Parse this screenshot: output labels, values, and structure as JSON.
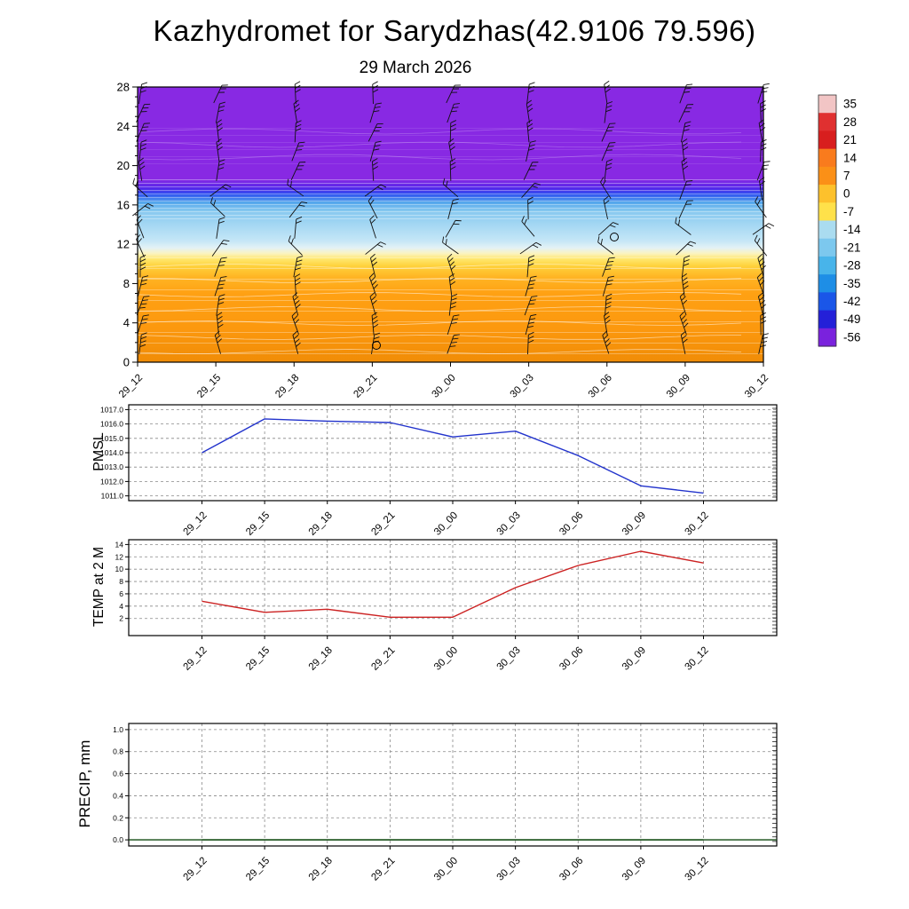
{
  "title": "Kazhydromet for Sarydzhas(42.9106 79.596)",
  "subtitle": "29 March 2026",
  "times": [
    "29_12",
    "29_15",
    "29_18",
    "29_21",
    "30_00",
    "30_03",
    "30_06",
    "30_09",
    "30_12"
  ],
  "chart_data": [
    {
      "type": "heatmap",
      "name": "temperature-wind-vertical-profile",
      "description": "filled temperature contours (deg C) with wind barbs at each forecast time, two calm-wind circles",
      "ylim": [
        0,
        28
      ],
      "yticks": [
        0,
        4,
        8,
        12,
        16,
        20,
        24,
        28
      ],
      "ytick_labels": [
        "0",
        "4",
        "8",
        "12",
        "16",
        "20",
        "24",
        "28"
      ],
      "colorbar": {
        "labels": [
          "35",
          "28",
          "21",
          "14",
          "7",
          "0",
          "-7",
          "-14",
          "-21",
          "-28",
          "-35",
          "-42",
          "-49",
          "-56"
        ],
        "colors": [
          "#f2c5c5",
          "#e03030",
          "#d81e1e",
          "#f97b1d",
          "#fb9017",
          "#fdc12c",
          "#ffe14a",
          "#aadcf0",
          "#7cc8ee",
          "#48b4ea",
          "#1e8ee6",
          "#1a56e8",
          "#2420d8",
          "#7a22dd"
        ]
      }
    },
    {
      "type": "line",
      "name": "PMSL",
      "color": "#2233cc",
      "ylim": [
        1011,
        1017
      ],
      "yticks": [
        1017,
        1016,
        1015,
        1014,
        1013,
        1012,
        1011
      ],
      "ytick_labels": [
        "1017.0",
        "1016.0",
        "1015.0",
        "1014.0",
        "1013.0",
        "1012.0",
        "1011.0"
      ],
      "values": [
        1014.0,
        1016.35,
        1016.2,
        1016.1,
        1015.1,
        1015.5,
        1013.8,
        1011.7,
        1011.2
      ]
    },
    {
      "type": "line",
      "name": "TEMP at 2 M",
      "color": "#cc2222",
      "ylim": [
        0,
        14
      ],
      "yticks": [
        14,
        12,
        10,
        8,
        6,
        4,
        2
      ],
      "ytick_labels": [
        "14",
        "12",
        "10",
        "8",
        "6",
        "4",
        "2"
      ],
      "values": [
        4.8,
        3.0,
        3.5,
        2.2,
        2.2,
        7.0,
        10.6,
        12.9,
        11.0
      ]
    },
    {
      "type": "line",
      "name": "PRECIP, mm",
      "color": "#104a10",
      "ylim": [
        0,
        1
      ],
      "yticks": [
        1.0,
        0.8,
        0.6,
        0.4,
        0.2,
        0.0
      ],
      "ytick_labels": [
        "1.0",
        "0.8",
        "0.6",
        "0.4",
        "0.2",
        "0.0"
      ],
      "values": [
        0,
        0,
        0,
        0,
        0,
        0,
        0,
        0,
        0
      ]
    }
  ]
}
